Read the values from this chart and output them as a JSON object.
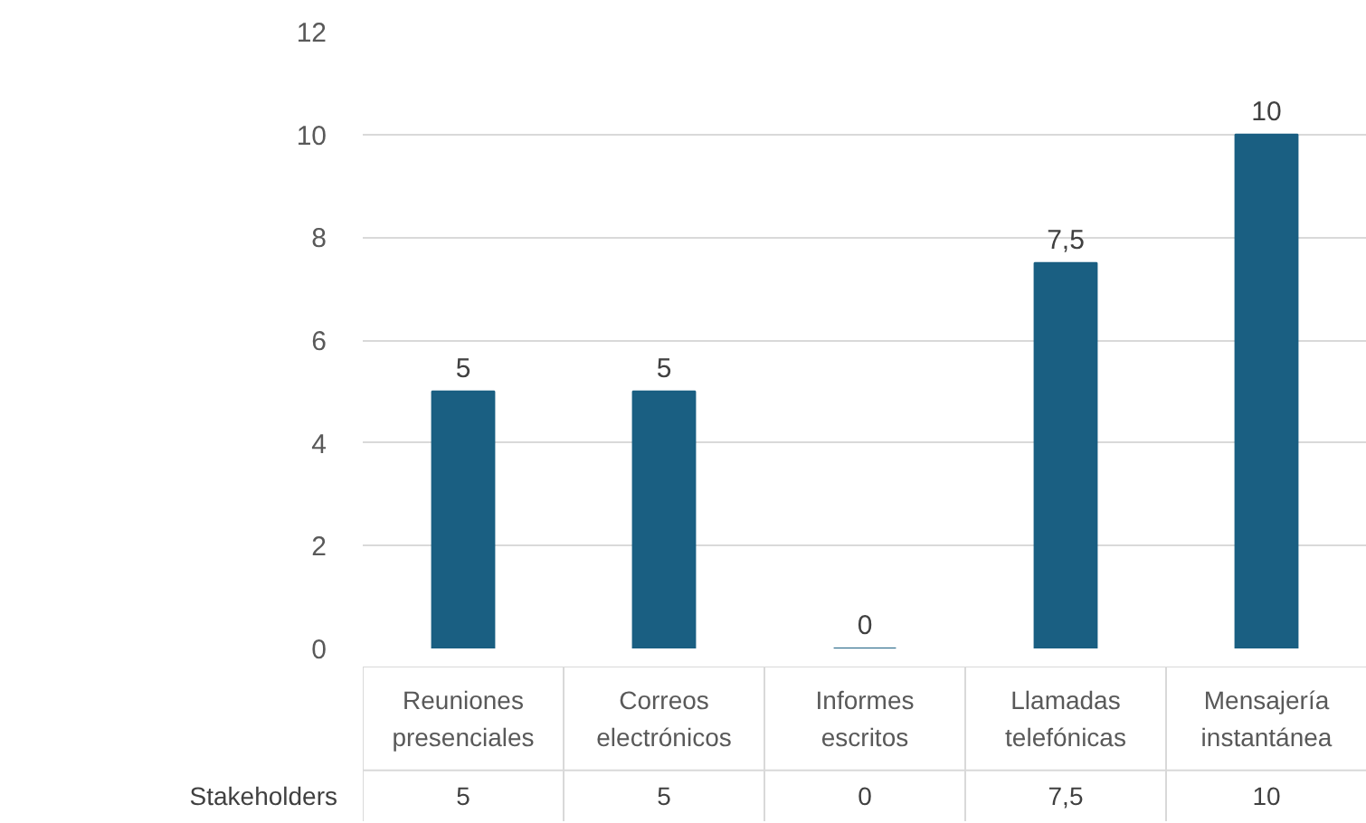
{
  "chart_data": {
    "type": "bar",
    "categories": [
      "Reuniones presenciales",
      "Correos electrónicos",
      "Informes escritos",
      "Llamadas telefónicas",
      "Mensajería instantánea"
    ],
    "series": [
      {
        "name": "Stakeholders",
        "color": "#1a5f82",
        "values": [
          5,
          5,
          0,
          7.5,
          10
        ],
        "value_labels": [
          "5",
          "5",
          "0",
          "7,5",
          "10"
        ]
      }
    ],
    "ylim": [
      0,
      12
    ],
    "yticks": [
      0,
      2,
      4,
      6,
      8,
      10,
      12
    ],
    "grid": "y",
    "legend": "bottom"
  }
}
